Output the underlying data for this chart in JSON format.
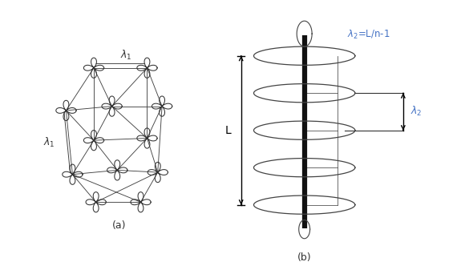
{
  "bg_color": "#ffffff",
  "label_a": "(a)",
  "label_b": "(b)",
  "lambda1_top": "$\\lambda_1$",
  "lambda1_left": "$\\lambda_1$",
  "lambda2_eq": "$\\lambda_2$=L/n-1",
  "lambda2_label": "$\\lambda_2$",
  "L_label": "L",
  "blue_color": "#4472c4",
  "black_color": "#000000",
  "gray_color": "#444444"
}
